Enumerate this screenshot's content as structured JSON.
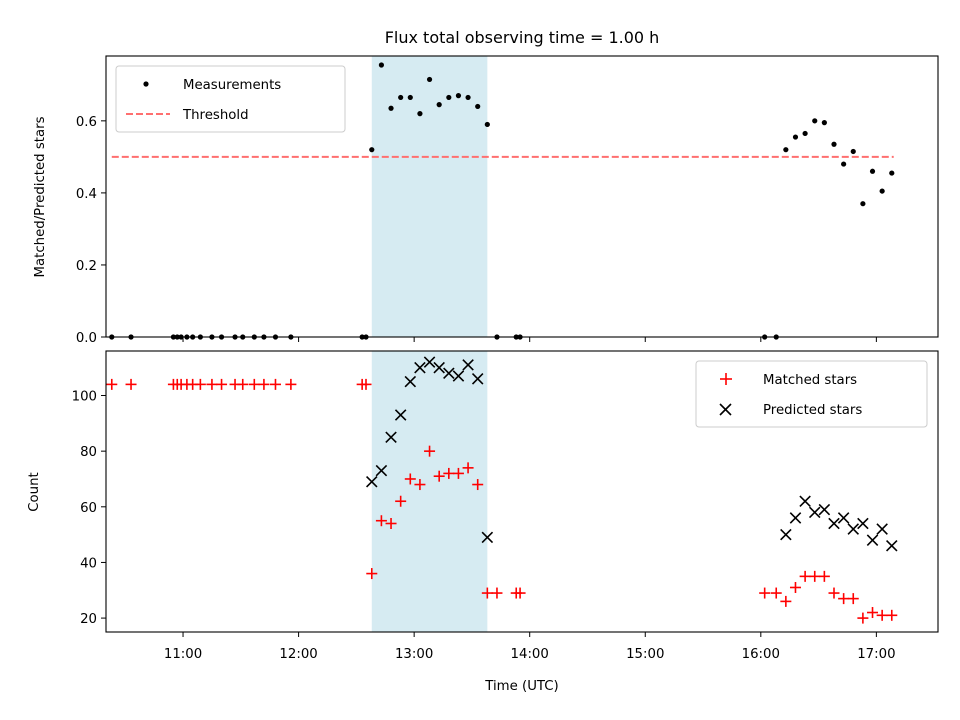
{
  "chart_data": [
    {
      "type": "scatter",
      "title": "Flux total observing time = 1.00 h",
      "xlabel": "",
      "ylabel": "Matched/Predicted stars",
      "xlim": [
        "10:20",
        "17:32"
      ],
      "ylim": [
        0,
        0.78
      ],
      "yticks": [
        "0.0",
        "0.2",
        "0.4",
        "0.6"
      ],
      "highlight_span": {
        "start": "12:38",
        "end": "13:38",
        "color": "#add8e6"
      },
      "legend": {
        "location": "top-left",
        "entries": [
          "Measurements",
          "Threshold"
        ]
      },
      "threshold": {
        "name": "Threshold",
        "value": 0.5,
        "start": "10:23",
        "end": "17:09",
        "color": "#ff6f6f"
      },
      "series": [
        {
          "name": "Measurements",
          "color": "#000000",
          "marker": "dot",
          "x": [
            "10:23",
            "10:33",
            "10:55",
            "10:57",
            "10:59",
            "11:02",
            "11:05",
            "11:09",
            "11:15",
            "11:20",
            "11:27",
            "11:31",
            "11:37",
            "11:42",
            "11:48",
            "11:56",
            "12:33",
            "12:35",
            "12:38",
            "12:43",
            "12:48",
            "12:53",
            "12:58",
            "13:03",
            "13:08",
            "13:13",
            "13:18",
            "13:23",
            "13:28",
            "13:33",
            "13:38",
            "13:43",
            "13:53",
            "13:55",
            "16:02",
            "16:08",
            "16:13",
            "16:18",
            "16:23",
            "16:28",
            "16:33",
            "16:38",
            "16:43",
            "16:48",
            "16:53",
            "16:58",
            "17:03",
            "17:08"
          ],
          "y": [
            0,
            0,
            0,
            0,
            0,
            0,
            0,
            0,
            0,
            0,
            0,
            0,
            0,
            0,
            0,
            0,
            0,
            0,
            0.52,
            0.755,
            0.635,
            0.665,
            0.665,
            0.62,
            0.715,
            0.645,
            0.665,
            0.67,
            0.665,
            0.64,
            0.59,
            0,
            0,
            0,
            0,
            0,
            0.52,
            0.555,
            0.565,
            0.6,
            0.595,
            0.535,
            0.48,
            0.515,
            0.37,
            0.46,
            0.405,
            0.455
          ]
        }
      ]
    },
    {
      "type": "scatter",
      "title": "",
      "xlabel": "Time (UTC)",
      "ylabel": "Count",
      "xlim": [
        "10:20",
        "17:32"
      ],
      "ylim": [
        15,
        116
      ],
      "xticks": [
        "11:00",
        "12:00",
        "13:00",
        "14:00",
        "15:00",
        "16:00",
        "17:00"
      ],
      "yticks": [
        "20",
        "40",
        "60",
        "80",
        "100"
      ],
      "highlight_span": {
        "start": "12:38",
        "end": "13:38",
        "color": "#add8e6"
      },
      "legend": {
        "location": "top-right",
        "entries": [
          "Matched stars",
          "Predicted stars"
        ]
      },
      "series": [
        {
          "name": "Matched stars",
          "color": "#ff0000",
          "marker": "plus",
          "x": [
            "10:23",
            "10:33",
            "10:55",
            "10:57",
            "10:59",
            "11:02",
            "11:05",
            "11:09",
            "11:15",
            "11:20",
            "11:27",
            "11:31",
            "11:37",
            "11:42",
            "11:48",
            "11:56",
            "12:33",
            "12:35",
            "12:38",
            "12:43",
            "12:48",
            "12:53",
            "12:58",
            "13:03",
            "13:08",
            "13:13",
            "13:18",
            "13:23",
            "13:28",
            "13:33",
            "13:38",
            "13:43",
            "13:53",
            "13:55",
            "16:02",
            "16:08",
            "16:13",
            "16:18",
            "16:23",
            "16:28",
            "16:33",
            "16:38",
            "16:43",
            "16:48",
            "16:53",
            "16:58",
            "17:03",
            "17:08"
          ],
          "y": [
            104,
            104,
            104,
            104,
            104,
            104,
            104,
            104,
            104,
            104,
            104,
            104,
            104,
            104,
            104,
            104,
            104,
            104,
            36,
            55,
            54,
            62,
            70,
            68,
            80,
            71,
            72,
            72,
            74,
            68,
            29,
            29,
            29,
            29,
            29,
            29,
            26,
            31,
            35,
            35,
            35,
            29,
            27,
            27,
            20,
            22,
            21,
            21
          ]
        },
        {
          "name": "Predicted stars",
          "color": "#000000",
          "marker": "x",
          "x": [
            "12:38",
            "12:43",
            "12:48",
            "12:53",
            "12:58",
            "13:03",
            "13:08",
            "13:13",
            "13:18",
            "13:23",
            "13:28",
            "13:33",
            "13:38",
            "16:13",
            "16:18",
            "16:23",
            "16:28",
            "16:33",
            "16:38",
            "16:43",
            "16:48",
            "16:53",
            "16:58",
            "17:03",
            "17:08"
          ],
          "y": [
            69,
            73,
            85,
            93,
            105,
            110,
            112,
            110,
            108,
            107,
            111,
            106,
            49,
            50,
            56,
            62,
            58,
            59,
            54,
            56,
            52,
            54,
            48,
            52,
            46
          ]
        }
      ]
    }
  ]
}
